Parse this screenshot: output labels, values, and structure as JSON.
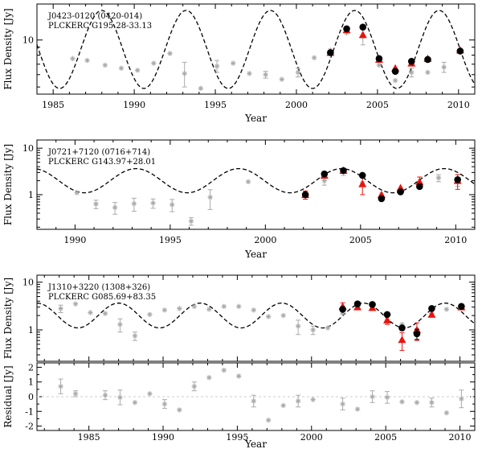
{
  "chart_data": [
    {
      "type": "scatter",
      "annotation_lines": [
        "J0423-0120 (0420-014)",
        "PLCKERC G195.28-33.13"
      ],
      "xlabel": "Year",
      "ylabel": "Flux Density [Jy]",
      "xlim": [
        1984,
        2011
      ],
      "ylim": [
        4.5,
        17
      ],
      "yscale": "log",
      "xticks": [
        1985,
        1990,
        1995,
        2000,
        2005,
        2010
      ],
      "yticks": [
        10
      ],
      "model": {
        "style": "dashed",
        "color": "#000000",
        "baseline": 8.7,
        "amplitude": 0.25,
        "period": 5.2,
        "peak_year": 2003.6
      },
      "series": [
        {
          "name": "historical",
          "marker": "asterisk",
          "color": "#aaaaaa",
          "points": [
            {
              "x": 1986.2,
              "y": 7.6
            },
            {
              "x": 1987.1,
              "y": 7.4
            },
            {
              "x": 1988.2,
              "y": 6.9
            },
            {
              "x": 1989.2,
              "y": 6.6
            },
            {
              "x": 1990.2,
              "y": 6.4
            },
            {
              "x": 1991.2,
              "y": 7.1
            },
            {
              "x": 1992.2,
              "y": 8.2
            },
            {
              "x": 1993.1,
              "y": 6.1,
              "err": 1.1
            },
            {
              "x": 1994.1,
              "y": 4.9
            },
            {
              "x": 1995.1,
              "y": 6.8,
              "err": 0.6
            },
            {
              "x": 1996.1,
              "y": 7.1
            },
            {
              "x": 1997.1,
              "y": 6.1
            },
            {
              "x": 1998.1,
              "y": 6.0,
              "err": 0.3
            },
            {
              "x": 1999.1,
              "y": 5.6
            },
            {
              "x": 2000.1,
              "y": 6.2,
              "err": 0.4
            },
            {
              "x": 2001.1,
              "y": 7.7
            },
            {
              "x": 2002.1,
              "y": 8.6
            },
            {
              "x": 2003.1,
              "y": 11.1
            },
            {
              "x": 2004.1,
              "y": 10.5,
              "err": 1.2
            },
            {
              "x": 2005.1,
              "y": 6.9
            },
            {
              "x": 2006.1,
              "y": 5.5
            },
            {
              "x": 2007.1,
              "y": 6.2,
              "err": 0.4
            },
            {
              "x": 2008.1,
              "y": 6.2
            },
            {
              "x": 2009.1,
              "y": 6.7,
              "err": 0.5
            }
          ]
        },
        {
          "name": "red-triangles",
          "marker": "triangle",
          "color": "#e8140f",
          "points": [
            {
              "x": 2002.1,
              "y": 8.3
            },
            {
              "x": 2003.1,
              "y": 11.6
            },
            {
              "x": 2004.1,
              "y": 10.8
            },
            {
              "x": 2005.1,
              "y": 7.5
            },
            {
              "x": 2006.1,
              "y": 6.6
            },
            {
              "x": 2007.1,
              "y": 7.1
            },
            {
              "x": 2008.1,
              "y": 7.6
            },
            {
              "x": 2010.1,
              "y": 8.6
            }
          ]
        },
        {
          "name": "black-circles",
          "marker": "circle",
          "color": "#000000",
          "points": [
            {
              "x": 2002.1,
              "y": 8.3
            },
            {
              "x": 2003.1,
              "y": 11.8
            },
            {
              "x": 2004.1,
              "y": 12.1
            },
            {
              "x": 2005.1,
              "y": 7.6
            },
            {
              "x": 2006.1,
              "y": 6.3
            },
            {
              "x": 2007.1,
              "y": 7.3
            },
            {
              "x": 2008.1,
              "y": 7.5
            },
            {
              "x": 2010.1,
              "y": 8.5
            }
          ]
        }
      ]
    },
    {
      "type": "scatter",
      "annotation_lines": [
        "J0721+7120 (0716+714)",
        "PLCKERC G143.97+28.01"
      ],
      "xlabel": "Year",
      "ylabel": "Flux Density [Jy]",
      "xlim": [
        1988,
        2011
      ],
      "ylim": [
        0.18,
        15
      ],
      "yscale": "log",
      "xticks": [
        1990,
        1995,
        2000,
        2005,
        2010
      ],
      "yticks": [
        1,
        10
      ],
      "model": {
        "style": "dashed",
        "color": "#000000",
        "baseline": 2.0,
        "amplitude": 0.26,
        "period": 5.4,
        "peak_year": 2004.0
      },
      "series": [
        {
          "name": "historical",
          "marker": "asterisk",
          "color": "#aaaaaa",
          "points": [
            {
              "x": 1990.1,
              "y": 1.1
            },
            {
              "x": 1991.1,
              "y": 0.63,
              "err": 0.13
            },
            {
              "x": 1992.1,
              "y": 0.53,
              "err": 0.15
            },
            {
              "x": 1993.1,
              "y": 0.64,
              "err": 0.2
            },
            {
              "x": 1994.1,
              "y": 0.66,
              "err": 0.15
            },
            {
              "x": 1995.1,
              "y": 0.61,
              "err": 0.18
            },
            {
              "x": 1996.1,
              "y": 0.27,
              "err": 0.05
            },
            {
              "x": 1997.1,
              "y": 0.88,
              "err": 0.4
            },
            {
              "x": 1999.1,
              "y": 1.9
            },
            {
              "x": 2002.1,
              "y": 1.0,
              "err": 0.2
            },
            {
              "x": 2003.1,
              "y": 2.0,
              "err": 0.4
            },
            {
              "x": 2004.1,
              "y": 3.1,
              "err": 0.5
            },
            {
              "x": 2005.1,
              "y": 1.8
            },
            {
              "x": 2006.1,
              "y": 1.0
            },
            {
              "x": 2007.1,
              "y": 1.2
            },
            {
              "x": 2008.1,
              "y": 1.6
            },
            {
              "x": 2009.1,
              "y": 2.3,
              "err": 0.4
            },
            {
              "x": 2010.1,
              "y": 2.1,
              "err": 0.6
            }
          ]
        },
        {
          "name": "red-triangles",
          "marker": "triangle",
          "color": "#e8140f",
          "points": [
            {
              "x": 2002.1,
              "y": 1.0,
              "err": 0.2
            },
            {
              "x": 2003.1,
              "y": 2.6
            },
            {
              "x": 2004.1,
              "y": 3.3
            },
            {
              "x": 2005.1,
              "y": 1.7,
              "err": 0.7
            },
            {
              "x": 2006.1,
              "y": 1.0
            },
            {
              "x": 2007.1,
              "y": 1.4
            },
            {
              "x": 2008.1,
              "y": 1.9,
              "err": 0.5
            },
            {
              "x": 2010.1,
              "y": 2.0,
              "err": 0.7
            }
          ]
        },
        {
          "name": "black-circles",
          "marker": "circle",
          "color": "#000000",
          "points": [
            {
              "x": 2002.1,
              "y": 1.0
            },
            {
              "x": 2003.1,
              "y": 2.8
            },
            {
              "x": 2004.1,
              "y": 3.3
            },
            {
              "x": 2005.1,
              "y": 2.6
            },
            {
              "x": 2006.1,
              "y": 0.82
            },
            {
              "x": 2007.1,
              "y": 1.15
            },
            {
              "x": 2008.1,
              "y": 1.5
            },
            {
              "x": 2010.1,
              "y": 2.1
            }
          ]
        }
      ]
    },
    {
      "type": "scatter",
      "annotation_lines": [
        "J1310+3220 (1308+326)",
        "PLCKERC G085.69+83.35"
      ],
      "xlabel": "",
      "ylabel": "Flux Density [Jy]",
      "xlim": [
        1981.5,
        2011
      ],
      "ylim": [
        0.22,
        14
      ],
      "yscale": "log",
      "xticks": [
        1985,
        1990,
        1995,
        2000,
        2005,
        2010
      ],
      "yticks": [
        1,
        10
      ],
      "model": {
        "style": "dashed",
        "color": "#000000",
        "baseline": 2.0,
        "amplitude": 0.26,
        "period": 5.5,
        "peak_year": 2003.5
      },
      "series": [
        {
          "name": "historical",
          "marker": "asterisk",
          "color": "#aaaaaa",
          "points": [
            {
              "x": 1983.1,
              "y": 2.8,
              "err": 0.5
            },
            {
              "x": 1984.1,
              "y": 3.5
            },
            {
              "x": 1985.1,
              "y": 2.3
            },
            {
              "x": 1986.1,
              "y": 2.2
            },
            {
              "x": 1987.1,
              "y": 1.3,
              "err": 0.4
            },
            {
              "x": 1988.1,
              "y": 0.75,
              "err": 0.15
            },
            {
              "x": 1989.1,
              "y": 2.1
            },
            {
              "x": 1990.1,
              "y": 2.6
            },
            {
              "x": 1991.1,
              "y": 2.8
            },
            {
              "x": 1992.1,
              "y": 3.1
            },
            {
              "x": 1993.1,
              "y": 2.7
            },
            {
              "x": 1994.1,
              "y": 3.1
            },
            {
              "x": 1995.1,
              "y": 3.1
            },
            {
              "x": 1996.1,
              "y": 2.6
            },
            {
              "x": 1997.1,
              "y": 1.9
            },
            {
              "x": 1998.1,
              "y": 2.0
            },
            {
              "x": 1999.1,
              "y": 1.2,
              "err": 0.4
            },
            {
              "x": 2000.1,
              "y": 1.0,
              "err": 0.2
            },
            {
              "x": 2001.1,
              "y": 1.1
            },
            {
              "x": 2002.1,
              "y": 2.2
            },
            {
              "x": 2003.1,
              "y": 3.3
            },
            {
              "x": 2004.1,
              "y": 3.2
            },
            {
              "x": 2005.1,
              "y": 1.6
            },
            {
              "x": 2006.1,
              "y": 1.3
            },
            {
              "x": 2007.1,
              "y": 1.0
            },
            {
              "x": 2008.1,
              "y": 2.2
            },
            {
              "x": 2009.1,
              "y": 2.7
            },
            {
              "x": 2010.1,
              "y": 3.2
            }
          ]
        },
        {
          "name": "red-triangles",
          "marker": "triangle",
          "color": "#e8140f",
          "points": [
            {
              "x": 2002.1,
              "y": 3.1,
              "err": 0.6
            },
            {
              "x": 2003.1,
              "y": 3.0
            },
            {
              "x": 2004.1,
              "y": 2.9
            },
            {
              "x": 2005.1,
              "y": 1.6,
              "err": 0.3
            },
            {
              "x": 2006.1,
              "y": 0.62,
              "err": 0.25
            },
            {
              "x": 2007.1,
              "y": 1.0,
              "err": 0.4
            },
            {
              "x": 2008.1,
              "y": 2.1
            },
            {
              "x": 2010.1,
              "y": 3.0
            }
          ]
        },
        {
          "name": "black-circles",
          "marker": "circle",
          "color": "#000000",
          "points": [
            {
              "x": 2002.1,
              "y": 2.7
            },
            {
              "x": 2003.1,
              "y": 3.5
            },
            {
              "x": 2004.1,
              "y": 3.4
            },
            {
              "x": 2005.1,
              "y": 2.1
            },
            {
              "x": 2006.1,
              "y": 1.1
            },
            {
              "x": 2007.1,
              "y": 0.83,
              "err": 0.2
            },
            {
              "x": 2008.1,
              "y": 2.8
            },
            {
              "x": 2010.1,
              "y": 3.1
            }
          ]
        }
      ]
    },
    {
      "type": "scatter",
      "annotation_lines": [],
      "xlabel": "Year",
      "ylabel": "Residual [Jy]",
      "xlim": [
        1981.5,
        2011
      ],
      "ylim": [
        -2.3,
        2.3
      ],
      "yscale": "linear",
      "xticks": [
        1985,
        1990,
        1995,
        2000,
        2005,
        2010
      ],
      "yticks": [
        -2,
        -1,
        0,
        1,
        2
      ],
      "zero_line": true,
      "series": [
        {
          "name": "residuals",
          "marker": "asterisk",
          "color": "#aaaaaa",
          "points": [
            {
              "x": 1983.1,
              "y": 0.7,
              "err": 0.5
            },
            {
              "x": 1984.1,
              "y": 0.2,
              "err": 0.2
            },
            {
              "x": 1986.1,
              "y": 0.1,
              "err": 0.3
            },
            {
              "x": 1987.1,
              "y": -0.05,
              "err": 0.5
            },
            {
              "x": 1988.1,
              "y": -0.4
            },
            {
              "x": 1989.1,
              "y": 0.2
            },
            {
              "x": 1990.1,
              "y": -0.5,
              "err": 0.3
            },
            {
              "x": 1991.1,
              "y": -0.9
            },
            {
              "x": 1992.1,
              "y": 0.7,
              "err": 0.3
            },
            {
              "x": 1993.1,
              "y": 1.3
            },
            {
              "x": 1994.1,
              "y": 1.8
            },
            {
              "x": 1995.1,
              "y": 1.4
            },
            {
              "x": 1996.1,
              "y": -0.3,
              "err": 0.4
            },
            {
              "x": 1997.1,
              "y": -1.6
            },
            {
              "x": 1998.1,
              "y": -0.6
            },
            {
              "x": 1999.1,
              "y": -0.3,
              "err": 0.4
            },
            {
              "x": 2000.1,
              "y": -0.2
            },
            {
              "x": 2002.1,
              "y": -0.5,
              "err": 0.4
            },
            {
              "x": 2003.1,
              "y": -0.85
            },
            {
              "x": 2004.1,
              "y": 0.0,
              "err": 0.4
            },
            {
              "x": 2005.1,
              "y": -0.05,
              "err": 0.4
            },
            {
              "x": 2006.1,
              "y": -0.35
            },
            {
              "x": 2007.1,
              "y": -0.4
            },
            {
              "x": 2008.1,
              "y": -0.4,
              "err": 0.3
            },
            {
              "x": 2009.1,
              "y": -1.1
            },
            {
              "x": 2010.1,
              "y": -0.15,
              "err": 0.6
            }
          ]
        }
      ]
    }
  ]
}
